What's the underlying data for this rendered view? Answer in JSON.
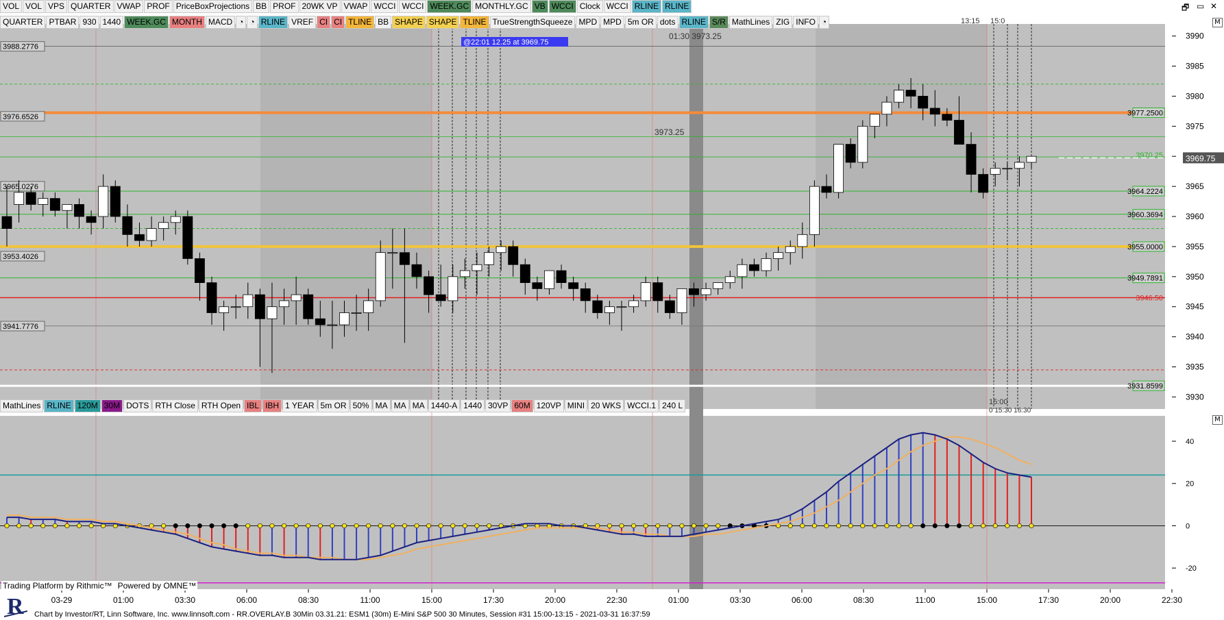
{
  "toolbar1": [
    "VOL",
    "VOL",
    "VPS",
    "QUARTER",
    "VWAP",
    "PROF",
    "PriceBoxProjections",
    "BB",
    "PROF",
    "20WK VP",
    "VWAP",
    "WCCI",
    "WCCI",
    "WEEK.GC",
    "MONTHLY.GC",
    "VB",
    "WCCI",
    "Clock",
    "WCCI",
    "RLINE",
    "RLINE"
  ],
  "toolbar2": [
    "QUARTER",
    "PTBAR",
    "930",
    "1440",
    "WEEK.GC",
    "MONTH",
    "MACD",
    "",
    "",
    "RLINE",
    "VREF",
    "CI",
    "CI",
    "TLINE",
    "BB",
    "SHAPE",
    "SHAPE",
    "TLINE",
    "TrueStrengthSqueeze",
    "MPD",
    "MPD",
    "5m OR",
    "dots",
    "RLINE",
    "S/R",
    "MathLines",
    "ZIG",
    "INFO",
    ""
  ],
  "toolbar3": [
    "MathLines",
    "RLINE",
    "120M",
    "30M",
    "DOTS",
    "RTH Close",
    "RTH Open",
    "IBL",
    "IBH",
    "1 YEAR",
    "5m OR",
    "50%",
    "MA",
    "MA",
    "MA",
    "1440-A",
    "1440",
    "30VP",
    "60M",
    "120VP",
    "MINI",
    "20 WKS",
    "WCCI.1",
    "240 L"
  ],
  "colors": {
    "WEEK.GC": "#4e8a5a",
    "MONTH": "#e06a6a",
    "RLINE": "#5ab5c8",
    "CI": "#e06a6a",
    "TLINE": "#f3b53a",
    "SHAPE": "#f3d050",
    "S/R": "#5a8a5a",
    "VB": "#4e8a5a",
    "WCCI_hl": "#4e8a5a",
    "MONTHLY.GC": "#e8e8e8",
    "up": "#ffffff",
    "down": "#000000",
    "orange": "#f58a3a",
    "yellow": "#f0c53a",
    "green": "#2db52d",
    "red": "#e02020",
    "white": "#ffffff",
    "macd_blue": "#3040c0",
    "macd_red": "#e02020",
    "signal": "#f0b060",
    "teal": "#1a9a9a",
    "magenta": "#d020d0"
  },
  "footer_text": "Chart by Investor/RT, Linn Software, Inc. www.linnsoft.com - RR.OVERLAY.B 30Min   03.31.21: ESM1 (30m) E-Mini S&P 500 30 Minutes, Session #31 15:00-13:15 - 2021-03-31 16:37:59",
  "powered": {
    "rithmic": "Trading Platform by Rithmic™",
    "omne": "Powered by OMNE™"
  },
  "annotations": {
    "top_time_left": "13:15",
    "top_time_right": "15:0",
    "blue_label": "@22:01  12.25 at 3969.75",
    "mid_label": "01:30  3973.25",
    "mid_label2": "3973.25",
    "bottom_time": "15:00",
    "bottom_time2": "0 15:30 16:30"
  },
  "chart_data": {
    "type": "candlestick",
    "ylim": [
      3928,
      3992
    ],
    "y_ticks": [
      3930,
      3935,
      3940,
      3945,
      3950,
      3955,
      3960,
      3965,
      3970,
      3975,
      3980,
      3985,
      3990
    ],
    "x_ticks": [
      "03-29",
      "01:00",
      "03:30",
      "06:00",
      "08:30",
      "11:00",
      "15:00",
      "17:30",
      "20:00",
      "22:30",
      "01:00",
      "03:30",
      "06:00",
      "08:30",
      "11:00",
      "15:00",
      "17:30",
      "20:00",
      "22:30"
    ],
    "current_price": "3969.75",
    "left_levels": [
      "3988.2776",
      "3976.6526",
      "3965.0276",
      "3953.4026",
      "3941.7776"
    ],
    "right_levels": [
      {
        "label": "3977.2500",
        "value": 3977.25,
        "color": "orange"
      },
      {
        "label": "3970.25",
        "value": 3970.25,
        "color": "green_text"
      },
      {
        "label": "3964.2224",
        "value": 3964.22,
        "color": "green"
      },
      {
        "label": "3960.3694",
        "value": 3960.37,
        "color": "green"
      },
      {
        "label": "3955.0000",
        "value": 3955.0,
        "color": "yellow"
      },
      {
        "label": "3949.7891",
        "value": 3949.79,
        "color": "green"
      },
      {
        "label": "3946.50",
        "value": 3946.5,
        "color": "red_text"
      },
      {
        "label": "3931.8599",
        "value": 3931.86,
        "color": "white"
      }
    ],
    "candles": [
      [
        3960,
        3965,
        3955,
        3958
      ],
      [
        3962,
        3966,
        3959,
        3964
      ],
      [
        3964,
        3965,
        3961,
        3962
      ],
      [
        3962,
        3964,
        3960,
        3963
      ],
      [
        3963,
        3964,
        3960,
        3961
      ],
      [
        3961,
        3962,
        3958,
        3962
      ],
      [
        3962,
        3963,
        3958,
        3960
      ],
      [
        3960,
        3961,
        3957,
        3959
      ],
      [
        3960,
        3967,
        3958,
        3965
      ],
      [
        3965,
        3966,
        3959,
        3960
      ],
      [
        3960,
        3962,
        3955,
        3957
      ],
      [
        3957,
        3959,
        3955,
        3956
      ],
      [
        3956,
        3960,
        3955,
        3958
      ],
      [
        3958,
        3960,
        3956,
        3959
      ],
      [
        3959,
        3961,
        3957,
        3960
      ],
      [
        3960,
        3961,
        3952,
        3953
      ],
      [
        3953,
        3954,
        3946,
        3949
      ],
      [
        3949,
        3950,
        3942,
        3944
      ],
      [
        3944,
        3946,
        3941,
        3945
      ],
      [
        3945,
        3947,
        3943,
        3945
      ],
      [
        3945,
        3949,
        3943,
        3947
      ],
      [
        3947,
        3948,
        3935,
        3943
      ],
      [
        3943,
        3949,
        3934,
        3945
      ],
      [
        3945,
        3948,
        3942,
        3946
      ],
      [
        3946,
        3950,
        3942,
        3947
      ],
      [
        3947,
        3948,
        3942,
        3943
      ],
      [
        3943,
        3946,
        3940,
        3942
      ],
      [
        3942,
        3946,
        3938,
        3942
      ],
      [
        3942,
        3946,
        3940,
        3944
      ],
      [
        3944,
        3947,
        3941,
        3944
      ],
      [
        3944,
        3948,
        3941,
        3946
      ],
      [
        3946,
        3956,
        3945,
        3954
      ],
      [
        3954,
        3958,
        3948,
        3954
      ],
      [
        3954,
        3958,
        3939,
        3952
      ],
      [
        3952,
        3954,
        3948,
        3950
      ],
      [
        3950,
        3951,
        3944,
        3947
      ],
      [
        3947,
        3952,
        3945,
        3946
      ],
      [
        3946,
        3952,
        3944,
        3950
      ],
      [
        3950,
        3953,
        3948,
        3951
      ],
      [
        3951,
        3954,
        3947,
        3952
      ],
      [
        3952,
        3955,
        3950,
        3954
      ],
      [
        3954,
        3956,
        3951,
        3955
      ],
      [
        3955,
        3956,
        3950,
        3952
      ],
      [
        3952,
        3953,
        3947,
        3949
      ],
      [
        3949,
        3950,
        3946,
        3948
      ],
      [
        3948,
        3951,
        3947,
        3951
      ],
      [
        3951,
        3952,
        3948,
        3949
      ],
      [
        3949,
        3950,
        3946,
        3948
      ],
      [
        3948,
        3949,
        3944,
        3946
      ],
      [
        3946,
        3947,
        3943,
        3944
      ],
      [
        3944,
        3946,
        3942,
        3945
      ],
      [
        3945,
        3946,
        3941,
        3945
      ],
      [
        3945,
        3947,
        3944,
        3946
      ],
      [
        3946,
        3950,
        3945,
        3949
      ],
      [
        3949,
        3950,
        3944,
        3946
      ],
      [
        3946,
        3947,
        3943,
        3944
      ],
      [
        3944,
        3948,
        3942,
        3948
      ],
      [
        3948,
        3949,
        3945,
        3947
      ],
      [
        3947,
        3949,
        3946,
        3948
      ],
      [
        3948,
        3949,
        3947,
        3949
      ],
      [
        3949,
        3951,
        3948,
        3950
      ],
      [
        3950,
        3953,
        3948,
        3952
      ],
      [
        3952,
        3953,
        3950,
        3951
      ],
      [
        3951,
        3954,
        3950,
        3953
      ],
      [
        3953,
        3955,
        3951,
        3954
      ],
      [
        3954,
        3956,
        3952,
        3955
      ],
      [
        3955,
        3959,
        3953,
        3957
      ],
      [
        3957,
        3966,
        3955,
        3965
      ],
      [
        3965,
        3967,
        3963,
        3964
      ],
      [
        3964,
        3972,
        3963,
        3972
      ],
      [
        3972,
        3973,
        3968,
        3969
      ],
      [
        3969,
        3976,
        3968,
        3975
      ],
      [
        3975,
        3977,
        3973,
        3977
      ],
      [
        3977,
        3980,
        3975,
        3979
      ],
      [
        3979,
        3982,
        3978,
        3981
      ],
      [
        3981,
        3983,
        3978,
        3980
      ],
      [
        3980,
        3982,
        3976,
        3978
      ],
      [
        3978,
        3981,
        3975,
        3977
      ],
      [
        3977,
        3978,
        3975,
        3976
      ],
      [
        3976,
        3980,
        3972,
        3972
      ],
      [
        3972,
        3974,
        3964,
        3967
      ],
      [
        3967,
        3968,
        3963,
        3964
      ],
      [
        3967,
        3969,
        3965,
        3968
      ],
      [
        3968,
        3969,
        3966,
        3968
      ],
      [
        3968,
        3970,
        3965,
        3969
      ],
      [
        3969,
        3970,
        3968,
        3970
      ]
    ],
    "macd": {
      "ylim": [
        -30,
        52
      ],
      "y_ticks": [
        -20,
        0,
        20,
        40
      ],
      "levels": {
        "teal": 24,
        "magenta": -27
      },
      "histogram": [
        4,
        4,
        3,
        3,
        3,
        2,
        2,
        2,
        1,
        1,
        0,
        -1,
        -2,
        -3,
        -4,
        -6,
        -8,
        -10,
        -11,
        -12,
        -13,
        -14,
        -14,
        -15,
        -15,
        -15,
        -16,
        -16,
        -16,
        -16,
        -15,
        -14,
        -12,
        -10,
        -8,
        -7,
        -6,
        -5,
        -4,
        -3,
        -2,
        -1,
        0,
        1,
        1,
        1,
        0,
        0,
        -1,
        -2,
        -3,
        -4,
        -4,
        -5,
        -5,
        -5,
        -5,
        -4,
        -3,
        -2,
        -1,
        0,
        1,
        2,
        3,
        5,
        8,
        12,
        16,
        21,
        25,
        29,
        33,
        37,
        41,
        43,
        44,
        43,
        41,
        38,
        34,
        30,
        27,
        25,
        24,
        23
      ],
      "signal": [
        5,
        5,
        4,
        4,
        4,
        3,
        3,
        3,
        2,
        2,
        1,
        0,
        -1,
        -2,
        -3,
        -4,
        -6,
        -8,
        -9,
        -11,
        -12,
        -13,
        -13,
        -14,
        -14,
        -15,
        -15,
        -15,
        -16,
        -16,
        -16,
        -15,
        -14,
        -13,
        -11,
        -10,
        -9,
        -8,
        -7,
        -6,
        -5,
        -4,
        -3,
        -2,
        -1,
        -1,
        -1,
        -1,
        -1,
        -1,
        -2,
        -3,
        -3,
        -4,
        -4,
        -5,
        -5,
        -5,
        -4,
        -4,
        -3,
        -2,
        -1,
        0,
        1,
        2,
        4,
        6,
        9,
        12,
        16,
        20,
        24,
        27,
        31,
        35,
        38,
        40,
        42,
        42,
        41,
        39,
        37,
        34,
        31,
        29
      ]
    }
  }
}
